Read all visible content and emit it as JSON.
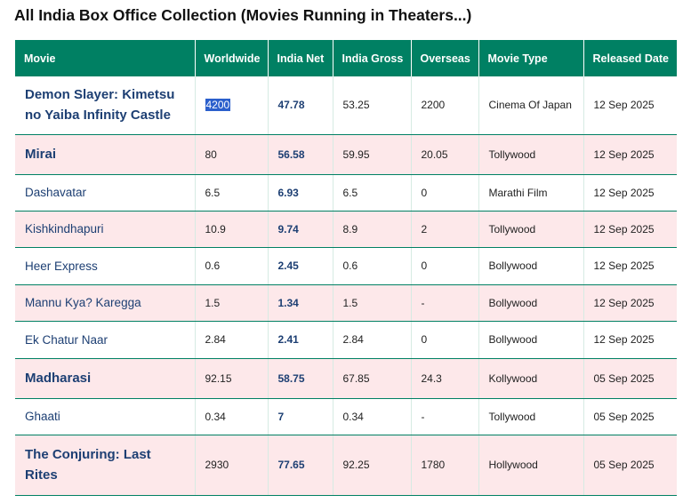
{
  "title": "All India Box Office Collection (Movies Running in Theaters...)",
  "columns": [
    "Movie",
    "Worldwide",
    "India Net",
    "India Gross",
    "Overseas",
    "Movie Type",
    "Released Date"
  ],
  "rows": [
    {
      "movie": "Demon Slayer: Kimetsu no Yaiba Infinity Castle",
      "worldwide": "4200",
      "net": "47.78",
      "gross": "53.25",
      "overseas": "2200",
      "type": "Cinema Of Japan",
      "date": "12 Sep 2025"
    },
    {
      "movie": "Mirai",
      "worldwide": "80",
      "net": "56.58",
      "gross": "59.95",
      "overseas": "20.05",
      "type": "Tollywood",
      "date": "12 Sep 2025"
    },
    {
      "movie": "Dashavatar",
      "worldwide": "6.5",
      "net": "6.93",
      "gross": "6.5",
      "overseas": "0",
      "type": "Marathi Film",
      "date": "12 Sep 2025"
    },
    {
      "movie": "Kishkindhapuri",
      "worldwide": "10.9",
      "net": "9.74",
      "gross": "8.9",
      "overseas": "2",
      "type": "Tollywood",
      "date": "12 Sep 2025"
    },
    {
      "movie": "Heer Express",
      "worldwide": "0.6",
      "net": "2.45",
      "gross": "0.6",
      "overseas": "0",
      "type": "Bollywood",
      "date": "12 Sep 2025"
    },
    {
      "movie": "Mannu Kya? Karegga",
      "worldwide": "1.5",
      "net": "1.34",
      "gross": "1.5",
      "overseas": "-",
      "type": "Bollywood",
      "date": "12 Sep 2025"
    },
    {
      "movie": "Ek Chatur Naar",
      "worldwide": "2.84",
      "net": "2.41",
      "gross": "2.84",
      "overseas": "0",
      "type": "Bollywood",
      "date": "12 Sep 2025"
    },
    {
      "movie": "Madharasi",
      "worldwide": "92.15",
      "net": "58.75",
      "gross": "67.85",
      "overseas": "24.3",
      "type": "Kollywood",
      "date": "05 Sep 2025"
    },
    {
      "movie": "Ghaati",
      "worldwide": "0.34",
      "net": "7",
      "gross": "0.34",
      "overseas": "-",
      "type": "Tollywood",
      "date": "05 Sep 2025"
    },
    {
      "movie": "The Conjuring: Last Rites",
      "worldwide": "2930",
      "net": "77.65",
      "gross": "92.25",
      "overseas": "1780",
      "type": "Hollywood",
      "date": "05 Sep 2025"
    }
  ],
  "colors": {
    "header_bg": "#008063",
    "even_row_bg": "#fde8ea",
    "movie_link": "#1d3f73",
    "selection": "#2b5fcc"
  }
}
